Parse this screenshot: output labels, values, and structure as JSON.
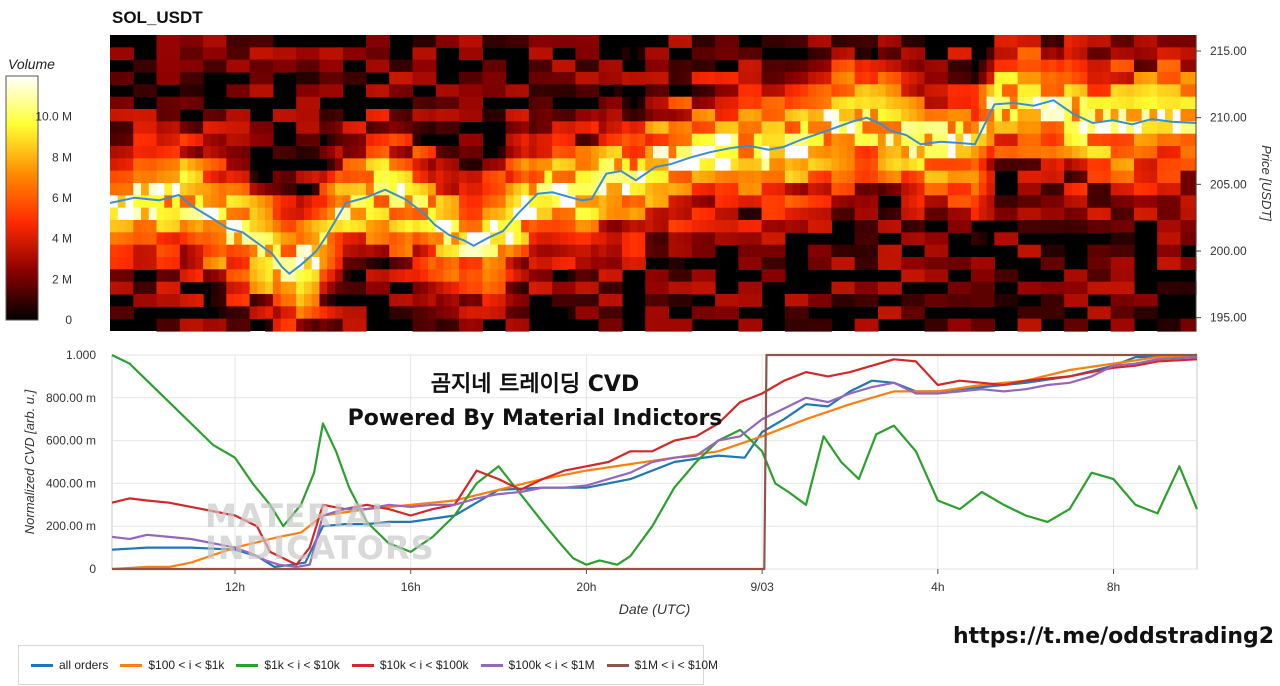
{
  "title": "SOL_USDT",
  "overlay": {
    "line1": "곰지네 트레이딩 CVD",
    "line2": "Powered By Material Indictors"
  },
  "watermark": {
    "line1": "MATERIAL",
    "line2": "INDICATORS"
  },
  "footer_link": "https://t.me/oddstrading2",
  "colors": {
    "all_orders": "#1f77b4",
    "s100_1k": "#ff7f0e",
    "s1k_10k": "#2ca02c",
    "s10k_100k": "#d62728",
    "s100k_1m": "#9467bd",
    "s1m_10m": "#8c564b",
    "price_line": "#3b8fd0"
  },
  "chart_data": [
    {
      "type": "heatmap",
      "title": "SOL_USDT",
      "colorbar_title": "Volume",
      "colorbar_ticks": [
        "0",
        "2 M",
        "4 M",
        "6 M",
        "8 M",
        "10.0 M"
      ],
      "colorbar_values": [
        0,
        2,
        4,
        6,
        8,
        10
      ],
      "colorbar_max": 12,
      "colorscale": [
        "#000000",
        "#8b0000",
        "#ff2a00",
        "#ff8c00",
        "#ffff33",
        "#ffffff"
      ],
      "ylabel": "Price [USDT]",
      "y_ticks": [
        "195.00",
        "200.00",
        "205.00",
        "210.00",
        "215.00"
      ],
      "y_tick_values": [
        195,
        200,
        205,
        210,
        215
      ],
      "ylim": [
        194,
        216.2
      ],
      "x_hours": [
        9.2,
        26.8
      ],
      "price_series": {
        "t": [
          9.2,
          9.7,
          10.2,
          10.6,
          10.9,
          11.3,
          11.6,
          11.9,
          12.2,
          12.5,
          12.7,
          12.85,
          13.1,
          13.4,
          13.6,
          14.0,
          14.4,
          14.8,
          15.2,
          15.6,
          15.8,
          16.1,
          16.4,
          16.6,
          16.9,
          17.2,
          17.5,
          17.9,
          18.2,
          18.6,
          18.8,
          19.0,
          19.3,
          19.6,
          19.9,
          20.3,
          20.6,
          21.0,
          21.4,
          21.8,
          22.2,
          22.6,
          22.9,
          23.3,
          23.7,
          24.0,
          24.3,
          24.6,
          24.9,
          25.1,
          25.4,
          25.7,
          26.1,
          26.5,
          26.8,
          27.2,
          27.6,
          28.0,
          28.4,
          28.8,
          29.2,
          29.6,
          30.0,
          30.4,
          30.8,
          31.3
        ],
        "p": [
          203.6,
          204.0,
          203.8,
          204.2,
          203.3,
          202.4,
          201.7,
          201.4,
          200.6,
          199.8,
          198.8,
          198.3,
          199.0,
          200.0,
          201.1,
          203.6,
          204.0,
          204.6,
          203.9,
          202.8,
          202.0,
          201.2,
          200.8,
          200.4,
          201.0,
          201.5,
          202.8,
          204.3,
          204.4,
          204.0,
          203.8,
          203.9,
          205.8,
          206.0,
          205.3,
          206.3,
          206.5,
          207.0,
          207.4,
          207.7,
          207.9,
          207.6,
          207.8,
          208.4,
          208.9,
          209.3,
          209.7,
          210.0,
          209.5,
          209.0,
          208.7,
          208.0,
          208.2,
          208.1,
          208.0,
          211.0,
          211.1,
          210.9,
          211.3,
          210.3,
          209.6,
          209.8,
          209.5,
          209.9,
          209.7,
          209.6
        ]
      },
      "time_span_hours": [
        9.2,
        31.3
      ]
    },
    {
      "type": "line",
      "xlabel": "Date (UTC)",
      "ylabel": "Normalized CVD [arb. u.]",
      "x_ticks": [
        "12h",
        "16h",
        "20h",
        "9/03",
        "4h",
        "8h"
      ],
      "x_tick_hours": [
        12,
        16,
        20,
        24,
        28,
        32
      ],
      "xlim_hours": [
        9.2,
        33.9
      ],
      "y_ticks": [
        "0",
        "200.00 m",
        "400.00 m",
        "600.00 m",
        "800.00 m",
        "1.000"
      ],
      "y_tick_values": [
        0,
        0.2,
        0.4,
        0.6,
        0.8,
        1.0
      ],
      "ylim": [
        0,
        1.0
      ],
      "series": [
        {
          "name": "all orders",
          "color_key": "all_orders",
          "x": [
            9.2,
            10.0,
            11.0,
            12.0,
            12.5,
            12.9,
            13.3,
            13.6,
            14.0,
            14.5,
            15.0,
            15.5,
            16.0,
            17.0,
            18.0,
            19.0,
            20.0,
            21.0,
            22.0,
            23.0,
            23.6,
            24.0,
            24.5,
            25.0,
            25.5,
            26.0,
            26.5,
            27.0,
            27.5,
            28.0,
            28.5,
            29.0,
            30.0,
            31.0,
            32.0,
            32.5,
            33.0,
            33.9
          ],
          "y": [
            0.09,
            0.1,
            0.1,
            0.09,
            0.06,
            0.01,
            0.02,
            0.03,
            0.2,
            0.21,
            0.21,
            0.22,
            0.22,
            0.25,
            0.37,
            0.38,
            0.38,
            0.42,
            0.5,
            0.53,
            0.52,
            0.64,
            0.7,
            0.77,
            0.76,
            0.83,
            0.88,
            0.87,
            0.83,
            0.83,
            0.84,
            0.85,
            0.87,
            0.9,
            0.95,
            0.99,
            0.99,
            0.99
          ]
        },
        {
          "name": "$100 < i < $1k",
          "color_key": "s100_1k",
          "x": [
            9.2,
            10.0,
            10.5,
            11.0,
            12.0,
            13.0,
            13.5,
            14.0,
            15.0,
            16.0,
            17.0,
            18.0,
            19.0,
            20.0,
            21.0,
            22.0,
            23.0,
            24.0,
            25.0,
            26.0,
            27.0,
            28.0,
            29.0,
            30.0,
            31.0,
            32.0,
            33.0,
            33.9
          ],
          "y": [
            0.0,
            0.01,
            0.01,
            0.03,
            0.1,
            0.15,
            0.17,
            0.25,
            0.28,
            0.3,
            0.32,
            0.37,
            0.42,
            0.46,
            0.49,
            0.52,
            0.55,
            0.62,
            0.7,
            0.77,
            0.83,
            0.83,
            0.86,
            0.88,
            0.93,
            0.96,
            0.99,
            1.0
          ]
        },
        {
          "name": "$1k < i < $10k",
          "color_key": "s1k_10k",
          "x": [
            9.2,
            9.6,
            10.0,
            10.5,
            11.0,
            11.5,
            12.0,
            12.4,
            12.8,
            13.1,
            13.5,
            13.8,
            14.0,
            14.3,
            14.6,
            15.0,
            15.5,
            16.0,
            16.5,
            17.0,
            17.5,
            18.0,
            18.5,
            19.0,
            19.4,
            19.7,
            20.0,
            20.3,
            20.7,
            21.0,
            21.5,
            22.0,
            22.5,
            23.0,
            23.5,
            24.0,
            24.3,
            24.6,
            25.0,
            25.4,
            25.8,
            26.2,
            26.6,
            27.0,
            27.5,
            28.0,
            28.5,
            29.0,
            29.5,
            30.0,
            30.5,
            31.0,
            31.5,
            32.0,
            32.5,
            33.0,
            33.5,
            33.9
          ],
          "y": [
            1.0,
            0.96,
            0.88,
            0.78,
            0.68,
            0.58,
            0.52,
            0.4,
            0.3,
            0.2,
            0.3,
            0.45,
            0.68,
            0.55,
            0.38,
            0.22,
            0.12,
            0.08,
            0.15,
            0.25,
            0.4,
            0.48,
            0.35,
            0.22,
            0.12,
            0.05,
            0.02,
            0.04,
            0.02,
            0.06,
            0.2,
            0.38,
            0.5,
            0.6,
            0.65,
            0.55,
            0.4,
            0.36,
            0.3,
            0.62,
            0.5,
            0.42,
            0.63,
            0.67,
            0.55,
            0.32,
            0.28,
            0.36,
            0.3,
            0.25,
            0.22,
            0.28,
            0.45,
            0.42,
            0.3,
            0.26,
            0.48,
            0.28
          ]
        },
        {
          "name": "$10k < i < $100k",
          "color_key": "s10k_100k",
          "x": [
            9.2,
            9.6,
            10.0,
            10.5,
            11.0,
            11.5,
            12.0,
            12.5,
            12.8,
            13.1,
            13.4,
            13.7,
            14.0,
            14.5,
            15.0,
            15.5,
            16.0,
            16.5,
            17.0,
            17.5,
            18.0,
            18.5,
            19.0,
            19.5,
            20.0,
            20.5,
            21.0,
            21.5,
            22.0,
            22.5,
            23.0,
            23.5,
            24.0,
            24.5,
            25.0,
            25.5,
            26.0,
            26.5,
            27.0,
            27.5,
            28.0,
            28.5,
            29.0,
            29.5,
            30.0,
            30.5,
            31.0,
            31.5,
            32.0,
            32.5,
            33.0,
            33.9
          ],
          "y": [
            0.31,
            0.33,
            0.32,
            0.31,
            0.29,
            0.27,
            0.25,
            0.2,
            0.08,
            0.05,
            0.02,
            0.1,
            0.3,
            0.28,
            0.3,
            0.28,
            0.25,
            0.28,
            0.3,
            0.46,
            0.42,
            0.37,
            0.42,
            0.46,
            0.48,
            0.5,
            0.55,
            0.55,
            0.6,
            0.62,
            0.68,
            0.78,
            0.82,
            0.88,
            0.92,
            0.9,
            0.92,
            0.95,
            0.98,
            0.97,
            0.86,
            0.88,
            0.87,
            0.86,
            0.88,
            0.89,
            0.9,
            0.92,
            0.94,
            0.95,
            0.97,
            0.98
          ]
        },
        {
          "name": "$100k < i < $1M",
          "color_key": "s100k_1m",
          "x": [
            9.2,
            9.6,
            10.0,
            10.5,
            11.0,
            11.5,
            12.0,
            12.4,
            12.7,
            13.0,
            13.4,
            13.7,
            14.0,
            14.5,
            15.0,
            15.5,
            16.0,
            16.5,
            17.0,
            17.5,
            18.0,
            18.5,
            19.0,
            19.5,
            20.0,
            20.5,
            21.0,
            21.5,
            22.0,
            22.5,
            23.0,
            23.5,
            24.0,
            24.5,
            25.0,
            25.5,
            26.0,
            26.5,
            27.0,
            27.5,
            28.0,
            28.5,
            29.0,
            29.5,
            30.0,
            30.5,
            31.0,
            31.5,
            32.0,
            32.5,
            33.0,
            33.9
          ],
          "y": [
            0.15,
            0.14,
            0.16,
            0.15,
            0.14,
            0.12,
            0.1,
            0.07,
            0.04,
            0.02,
            0.01,
            0.02,
            0.25,
            0.28,
            0.28,
            0.3,
            0.29,
            0.3,
            0.3,
            0.33,
            0.35,
            0.36,
            0.38,
            0.38,
            0.39,
            0.42,
            0.45,
            0.5,
            0.52,
            0.53,
            0.6,
            0.62,
            0.7,
            0.75,
            0.8,
            0.78,
            0.82,
            0.85,
            0.87,
            0.82,
            0.82,
            0.83,
            0.84,
            0.83,
            0.84,
            0.86,
            0.87,
            0.9,
            0.95,
            0.96,
            0.98,
            0.99
          ]
        },
        {
          "name": "$1M < i < $10M",
          "color_key": "s1m_10m",
          "x": [
            9.2,
            23.95,
            24.05,
            24.1,
            33.9
          ],
          "y": [
            0.0,
            0.0,
            0.0,
            1.0,
            1.0
          ]
        }
      ]
    }
  ]
}
